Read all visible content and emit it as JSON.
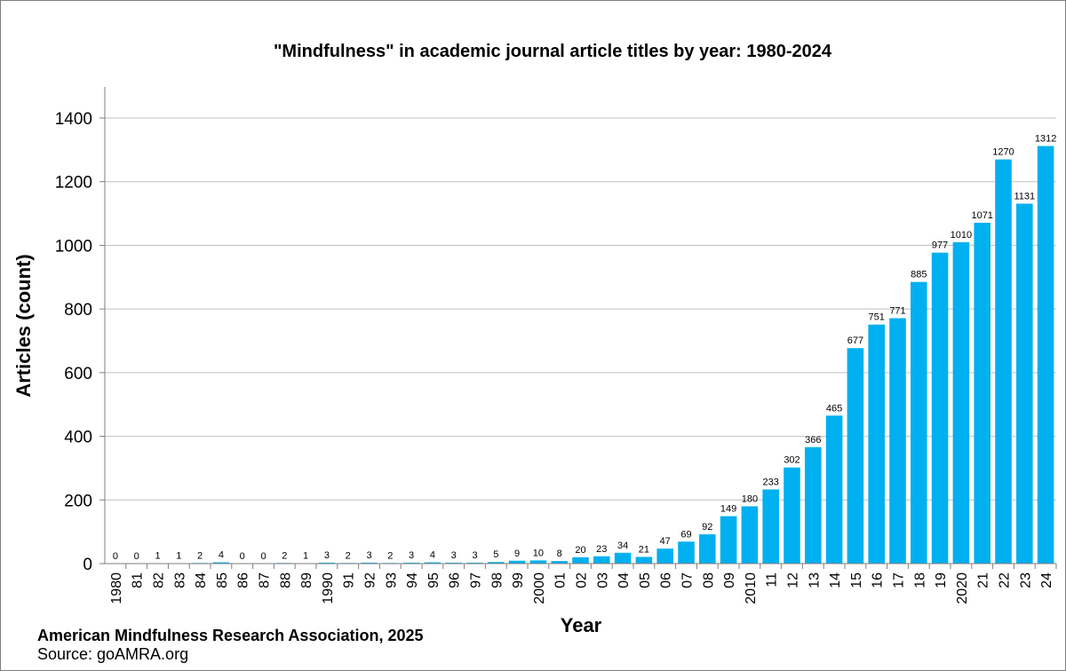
{
  "chart_data": {
    "type": "bar",
    "title": "\"Mindfulness\" in academic journal article titles by year: 1980-2024",
    "xlabel": "Year",
    "ylabel": "Articles (count)",
    "ylim": [
      0,
      1500
    ],
    "yticks": [
      0,
      200,
      400,
      600,
      800,
      1000,
      1200,
      1400
    ],
    "grid": true,
    "bar_color": "#00b0f0",
    "categories": [
      "1980",
      "81",
      "82",
      "83",
      "84",
      "85",
      "86",
      "87",
      "88",
      "89",
      "1990",
      "91",
      "92",
      "93",
      "94",
      "95",
      "96",
      "97",
      "98",
      "99",
      "2000",
      "01",
      "02",
      "03",
      "04",
      "05",
      "06",
      "07",
      "08",
      "09",
      "2010",
      "11",
      "12",
      "13",
      "14",
      "15",
      "16",
      "17",
      "18",
      "19",
      "2020",
      "21",
      "22",
      "23",
      "24"
    ],
    "values": [
      0,
      0,
      1,
      1,
      2,
      4,
      0,
      0,
      2,
      1,
      3,
      2,
      3,
      2,
      3,
      4,
      3,
      3,
      5,
      9,
      10,
      8,
      20,
      23,
      34,
      21,
      47,
      69,
      92,
      149,
      180,
      233,
      302,
      366,
      465,
      677,
      751,
      771,
      885,
      977,
      1010,
      1071,
      1270,
      1131,
      1312
    ]
  },
  "footer": {
    "org": "American Mindfulness Research Association, 2025",
    "source": "Source: goAMRA.org"
  }
}
